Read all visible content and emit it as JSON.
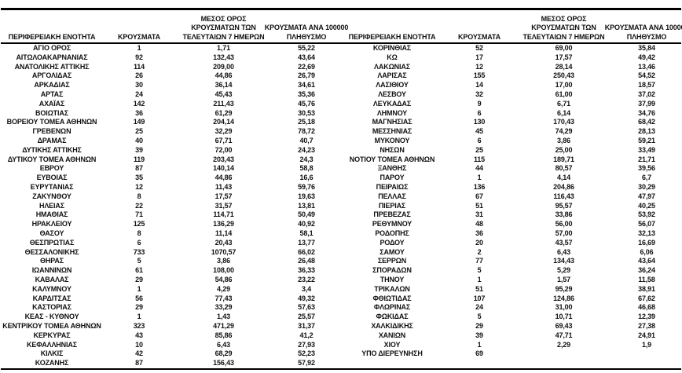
{
  "table": {
    "headers": {
      "region": "ΠΕΡΙΦΕΡΕΙΑΚΗ ΕΝΟΤΗΤΑ",
      "cases": "ΚΡΟΥΣΜΑΤΑ",
      "avg7_lines": [
        "ΜΕΣΟΣ ΟΡΟΣ",
        "ΚΡΟΥΣΜΑΤΩΝ ΤΩΝ",
        "ΤΕΛΕΥΤΑΙΩΝ 7 ΗΜΕΡΩΝ"
      ],
      "per100k_lines": [
        "ΚΡΟΥΣΜΑΤΑ ΑΝΑ 100000",
        "ΠΛΗΘΥΣΜΟ"
      ]
    },
    "left_rows": [
      [
        "ΑΓΙΟ ΟΡΟΣ",
        "1",
        "1,71",
        "55,22"
      ],
      [
        "ΑΙΤΩΛΟΑΚΑΡΝΑΝΙΑΣ",
        "92",
        "132,43",
        "43,64"
      ],
      [
        "ΑΝΑΤΟΛΙΚΗΣ ΑΤΤΙΚΗΣ",
        "114",
        "209,00",
        "22,69"
      ],
      [
        "ΑΡΓΟΛΙΔΑΣ",
        "26",
        "44,86",
        "26,79"
      ],
      [
        "ΑΡΚΑΔΙΑΣ",
        "30",
        "36,14",
        "34,61"
      ],
      [
        "ΑΡΤΑΣ",
        "24",
        "45,43",
        "35,36"
      ],
      [
        "ΑΧΑΪΑΣ",
        "142",
        "211,43",
        "45,76"
      ],
      [
        "ΒΟΙΩΤΙΑΣ",
        "36",
        "61,29",
        "30,53"
      ],
      [
        "ΒΟΡΕΙΟΥ ΤΟΜΕΑ ΑΘΗΝΩΝ",
        "149",
        "204,14",
        "25,18"
      ],
      [
        "ΓΡΕΒΕΝΩΝ",
        "25",
        "32,29",
        "78,72"
      ],
      [
        "ΔΡΑΜΑΣ",
        "40",
        "67,71",
        "40,7"
      ],
      [
        "ΔΥΤΙΚΗΣ ΑΤΤΙΚΗΣ",
        "39",
        "72,00",
        "24,23"
      ],
      [
        "ΔΥΤΙΚΟΥ ΤΟΜΕΑ ΑΘΗΝΩΝ",
        "119",
        "203,43",
        "24,3"
      ],
      [
        "ΕΒΡΟΥ",
        "87",
        "140,14",
        "58,8"
      ],
      [
        "ΕΥΒΟΙΑΣ",
        "35",
        "44,86",
        "16,6"
      ],
      [
        "ΕΥΡΥΤΑΝΙΑΣ",
        "12",
        "11,43",
        "59,76"
      ],
      [
        "ΖΑΚΥΝΘΟΥ",
        "8",
        "17,57",
        "19,63"
      ],
      [
        "ΗΛΕΙΑΣ",
        "22",
        "31,57",
        "13,81"
      ],
      [
        "ΗΜΑΘΙΑΣ",
        "71",
        "114,71",
        "50,49"
      ],
      [
        "ΗΡΑΚΛΕΙΟΥ",
        "125",
        "136,29",
        "40,92"
      ],
      [
        "ΘΑΣΟΥ",
        "8",
        "11,14",
        "58,1"
      ],
      [
        "ΘΕΣΠΡΩΤΙΑΣ",
        "6",
        "20,43",
        "13,77"
      ],
      [
        "ΘΕΣΣΑΛΟΝΙΚΗΣ",
        "733",
        "1070,57",
        "66,02"
      ],
      [
        "ΘΗΡΑΣ",
        "5",
        "3,86",
        "26,48"
      ],
      [
        "ΙΩΑΝΝΙΝΩΝ",
        "61",
        "108,00",
        "36,33"
      ],
      [
        "ΚΑΒΑΛΑΣ",
        "29",
        "54,86",
        "23,22"
      ],
      [
        "ΚΑΛΥΜΝΟΥ",
        "1",
        "4,29",
        "3,4"
      ],
      [
        "ΚΑΡΔΙΤΣΑΣ",
        "56",
        "77,43",
        "49,32"
      ],
      [
        "ΚΑΣΤΟΡΙΑΣ",
        "29",
        "33,29",
        "57,63"
      ],
      [
        "ΚΕΑΣ - ΚΥΘΝΟΥ",
        "1",
        "1,43",
        "25,57"
      ],
      [
        "ΚΕΝΤΡΙΚΟΥ ΤΟΜΕΑ ΑΘΗΝΩΝ",
        "323",
        "471,29",
        "31,37"
      ],
      [
        "ΚΕΡΚΥΡΑΣ",
        "43",
        "85,86",
        "41,2"
      ],
      [
        "ΚΕΦΑΛΛΗΝΙΑΣ",
        "10",
        "6,43",
        "27,93"
      ],
      [
        "ΚΙΛΚΙΣ",
        "42",
        "68,29",
        "52,23"
      ],
      [
        "ΚΟΖΑΝΗΣ",
        "87",
        "156,43",
        "57,92"
      ]
    ],
    "right_rows": [
      [
        "ΚΟΡΙΝΘΙΑΣ",
        "52",
        "69,00",
        "35,84"
      ],
      [
        "ΚΩ",
        "17",
        "17,57",
        "49,42"
      ],
      [
        "ΛΑΚΩΝΙΑΣ",
        "12",
        "28,14",
        "13,46"
      ],
      [
        "ΛΑΡΙΣΑΣ",
        "155",
        "250,43",
        "54,52"
      ],
      [
        "ΛΑΣΙΘΙΟΥ",
        "14",
        "17,00",
        "18,57"
      ],
      [
        "ΛΕΣΒΟΥ",
        "32",
        "61,00",
        "37,02"
      ],
      [
        "ΛΕΥΚΑΔΑΣ",
        "9",
        "6,71",
        "37,99"
      ],
      [
        "ΛΗΜΝΟΥ",
        "6",
        "6,14",
        "34,76"
      ],
      [
        "ΜΑΓΝΗΣΙΑΣ",
        "130",
        "170,43",
        "68,42"
      ],
      [
        "ΜΕΣΣΗΝΙΑΣ",
        "45",
        "74,29",
        "28,13"
      ],
      [
        "ΜΥΚΟΝΟΥ",
        "6",
        "3,86",
        "59,21"
      ],
      [
        "ΝΗΣΩΝ",
        "25",
        "25,00",
        "33,49"
      ],
      [
        "ΝΟΤΙΟΥ ΤΟΜΕΑ ΑΘΗΝΩΝ",
        "115",
        "189,71",
        "21,71"
      ],
      [
        "ΞΑΝΘΗΣ",
        "44",
        "80,57",
        "39,56"
      ],
      [
        "ΠΑΡΟΥ",
        "1",
        "4,14",
        "6,7"
      ],
      [
        "ΠΕΙΡΑΙΩΣ",
        "136",
        "204,86",
        "30,29"
      ],
      [
        "ΠΕΛΛΑΣ",
        "67",
        "116,43",
        "47,97"
      ],
      [
        "ΠΙΕΡΙΑΣ",
        "51",
        "95,57",
        "40,25"
      ],
      [
        "ΠΡΕΒΕΖΑΣ",
        "31",
        "33,86",
        "53,92"
      ],
      [
        "ΡΕΘΥΜΝΟΥ",
        "48",
        "56,00",
        "56,07"
      ],
      [
        "ΡΟΔΟΠΗΣ",
        "36",
        "57,00",
        "32,13"
      ],
      [
        "ΡΟΔΟΥ",
        "20",
        "43,57",
        "16,69"
      ],
      [
        "ΣΑΜΟΥ",
        "2",
        "6,43",
        "6,06"
      ],
      [
        "ΣΕΡΡΩΝ",
        "77",
        "134,43",
        "43,64"
      ],
      [
        "ΣΠΟΡΑΔΩΝ",
        "5",
        "5,29",
        "36,24"
      ],
      [
        "ΤΗΝΟΥ",
        "1",
        "1,57",
        "11,58"
      ],
      [
        "ΤΡΙΚΑΛΩΝ",
        "51",
        "95,29",
        "38,91"
      ],
      [
        "ΦΘΙΩΤΙΔΑΣ",
        "107",
        "124,86",
        "67,62"
      ],
      [
        "ΦΛΩΡΙΝΑΣ",
        "24",
        "31,00",
        "46,68"
      ],
      [
        "ΦΩΚΙΔΑΣ",
        "5",
        "10,71",
        "12,39"
      ],
      [
        "ΧΑΛΚΙΔΙΚΗΣ",
        "29",
        "69,43",
        "27,38"
      ],
      [
        "ΧΑΝΙΩΝ",
        "39",
        "47,71",
        "24,91"
      ],
      [
        "ΧΙΟΥ",
        "1",
        "2,29",
        "1,9"
      ],
      [
        "ΥΠΟ ΔΙΕΡΕΥΝΗΣΗ",
        "69",
        "",
        ""
      ]
    ]
  }
}
